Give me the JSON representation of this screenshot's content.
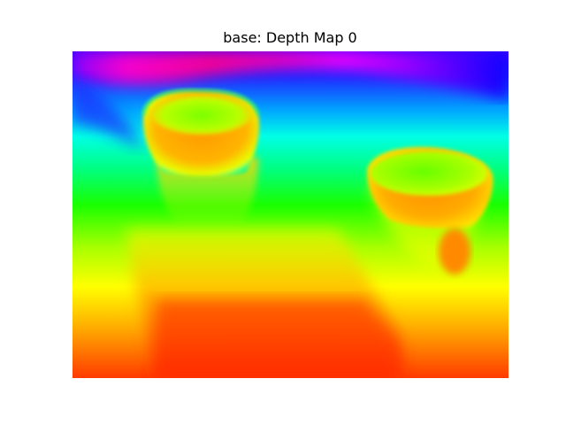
{
  "figure": {
    "title": "base: Depth Map 0"
  },
  "image": {
    "content": "depth-map",
    "colormap": "hsv",
    "colors": {
      "far": "#2b00ff",
      "mid_far": "#00ffff",
      "mid": "#00ff00",
      "mid_near": "#ffff00",
      "near": "#ff0000"
    }
  }
}
